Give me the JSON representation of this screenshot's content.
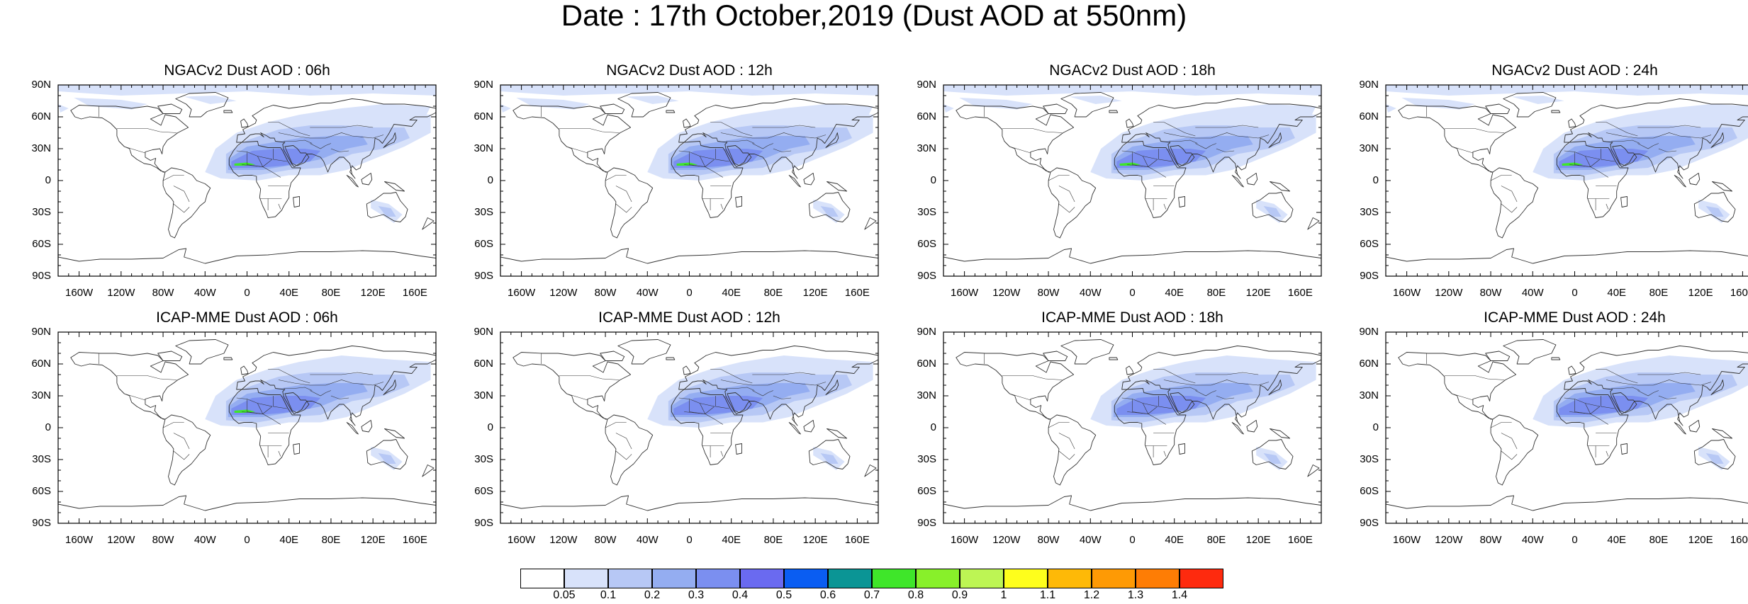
{
  "title": "Date : 17th October,2019 (Dust AOD at 550nm)",
  "lat_labels": [
    "90N",
    "60N",
    "30N",
    "0",
    "30S",
    "60S",
    "90S"
  ],
  "lon_labels": [
    "160W",
    "120W",
    "80W",
    "40W",
    "0",
    "40E",
    "80E",
    "120E",
    "160E"
  ],
  "panels": [
    {
      "title": "NGACv2 Dust AOD : 06h",
      "model": "NGACv2",
      "lead": "06h",
      "green_hotspot": true,
      "arctic_haze": true
    },
    {
      "title": "NGACv2 Dust AOD : 12h",
      "model": "NGACv2",
      "lead": "12h",
      "green_hotspot": true,
      "arctic_haze": true
    },
    {
      "title": "NGACv2 Dust AOD : 18h",
      "model": "NGACv2",
      "lead": "18h",
      "green_hotspot": true,
      "arctic_haze": true
    },
    {
      "title": "NGACv2 Dust AOD : 24h",
      "model": "NGACv2",
      "lead": "24h",
      "green_hotspot": true,
      "arctic_haze": true
    },
    {
      "title": "ICAP-MME Dust AOD : 06h",
      "model": "ICAP-MME",
      "lead": "06h",
      "green_hotspot": true,
      "arctic_haze": false
    },
    {
      "title": "ICAP-MME Dust AOD : 12h",
      "model": "ICAP-MME",
      "lead": "12h",
      "green_hotspot": false,
      "arctic_haze": false
    },
    {
      "title": "ICAP-MME Dust AOD : 18h",
      "model": "ICAP-MME",
      "lead": "18h",
      "green_hotspot": false,
      "arctic_haze": false
    },
    {
      "title": "ICAP-MME Dust AOD : 24h",
      "model": "ICAP-MME",
      "lead": "24h",
      "green_hotspot": false,
      "arctic_haze": false
    }
  ],
  "colorbar": {
    "labels": [
      "0.05",
      "0.1",
      "0.2",
      "0.3",
      "0.4",
      "0.5",
      "0.6",
      "0.7",
      "0.8",
      "0.9",
      "1",
      "1.1",
      "1.2",
      "1.3",
      "1.4"
    ],
    "colors": [
      "#ffffff",
      "#d8e2fa",
      "#b7c8f5",
      "#94adf1",
      "#7b8ff0",
      "#6a6af0",
      "#0a5df2",
      "#0b9595",
      "#3fe62a",
      "#88f02a",
      "#bdf554",
      "#fefe1c",
      "#feb907",
      "#fe9a05",
      "#fe7d05",
      "#fe2a0e"
    ]
  },
  "map_colors": {
    "coast": "#333333",
    "dust_light": "#d8e2fa",
    "dust_mid": "#b7c8f5",
    "dust_strong": "#94adf1",
    "dust_core": "#7b8ff0",
    "hotspot": "#3fe62a"
  }
}
